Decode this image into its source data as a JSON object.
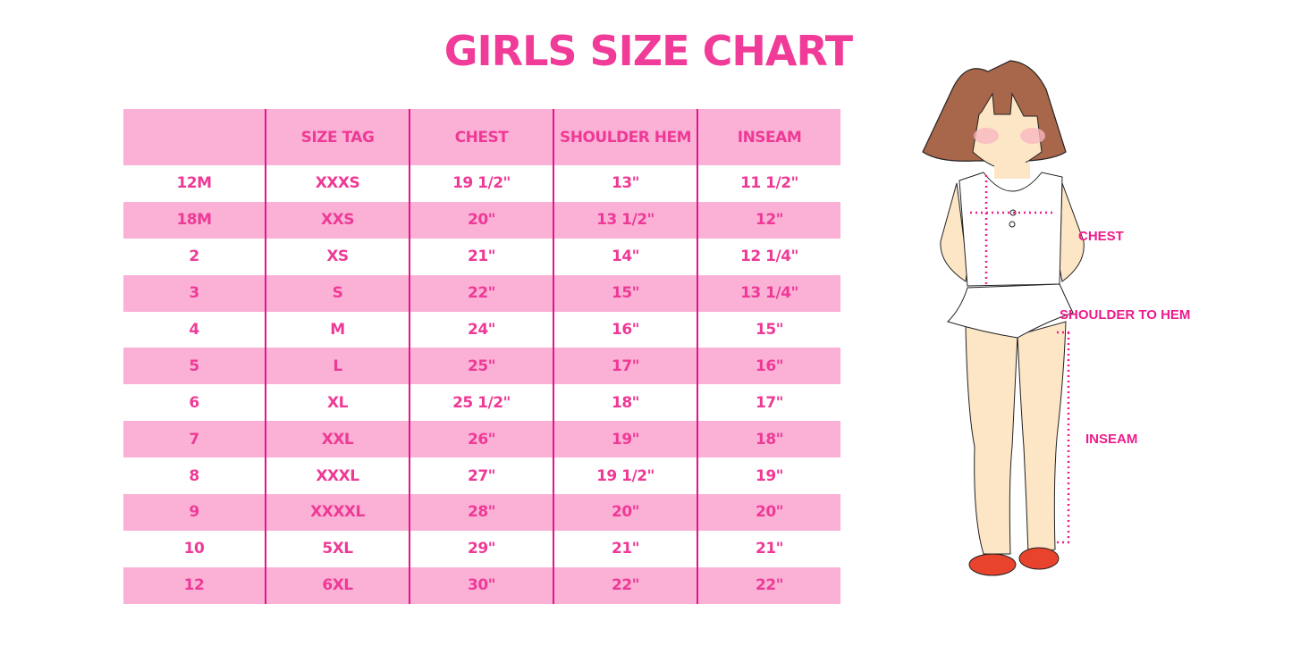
{
  "title": "GIRLS SIZE CHART",
  "table": {
    "headers": [
      "",
      "SIZE TAG",
      "CHEST",
      "SHOULDER HEM",
      "INSEAM"
    ],
    "rows": [
      [
        "12M",
        "XXXS",
        "19 1/2\"",
        "13\"",
        "11 1/2\""
      ],
      [
        "18M",
        "XXS",
        "20\"",
        "13 1/2\"",
        "12\""
      ],
      [
        "2",
        "XS",
        "21\"",
        "14\"",
        "12 1/4\""
      ],
      [
        "3",
        "S",
        "22\"",
        "15\"",
        "13 1/4\""
      ],
      [
        "4",
        "M",
        "24\"",
        "16\"",
        "15\""
      ],
      [
        "5",
        "L",
        "25\"",
        "17\"",
        "16\""
      ],
      [
        "6",
        "XL",
        "25 1/2\"",
        "18\"",
        "17\""
      ],
      [
        "7",
        "XXL",
        "26\"",
        "19\"",
        "18\""
      ],
      [
        "8",
        "XXXL",
        "27\"",
        "19 1/2\"",
        "19\""
      ],
      [
        "9",
        "XXXXL",
        "28\"",
        "20\"",
        "20\""
      ],
      [
        "10",
        "5XL",
        "29\"",
        "21\"",
        "21\""
      ],
      [
        "12",
        "6XL",
        "30\"",
        "22\"",
        "22\""
      ]
    ]
  },
  "figure": {
    "labels": {
      "chest": "CHEST",
      "shoulder_to_hem": "SHOULDER TO HEM",
      "inseam": "INSEAM"
    }
  },
  "colors": {
    "accent": "#ee3a96",
    "row_pink": "#fbb1d6",
    "divider": "#e0168b"
  }
}
